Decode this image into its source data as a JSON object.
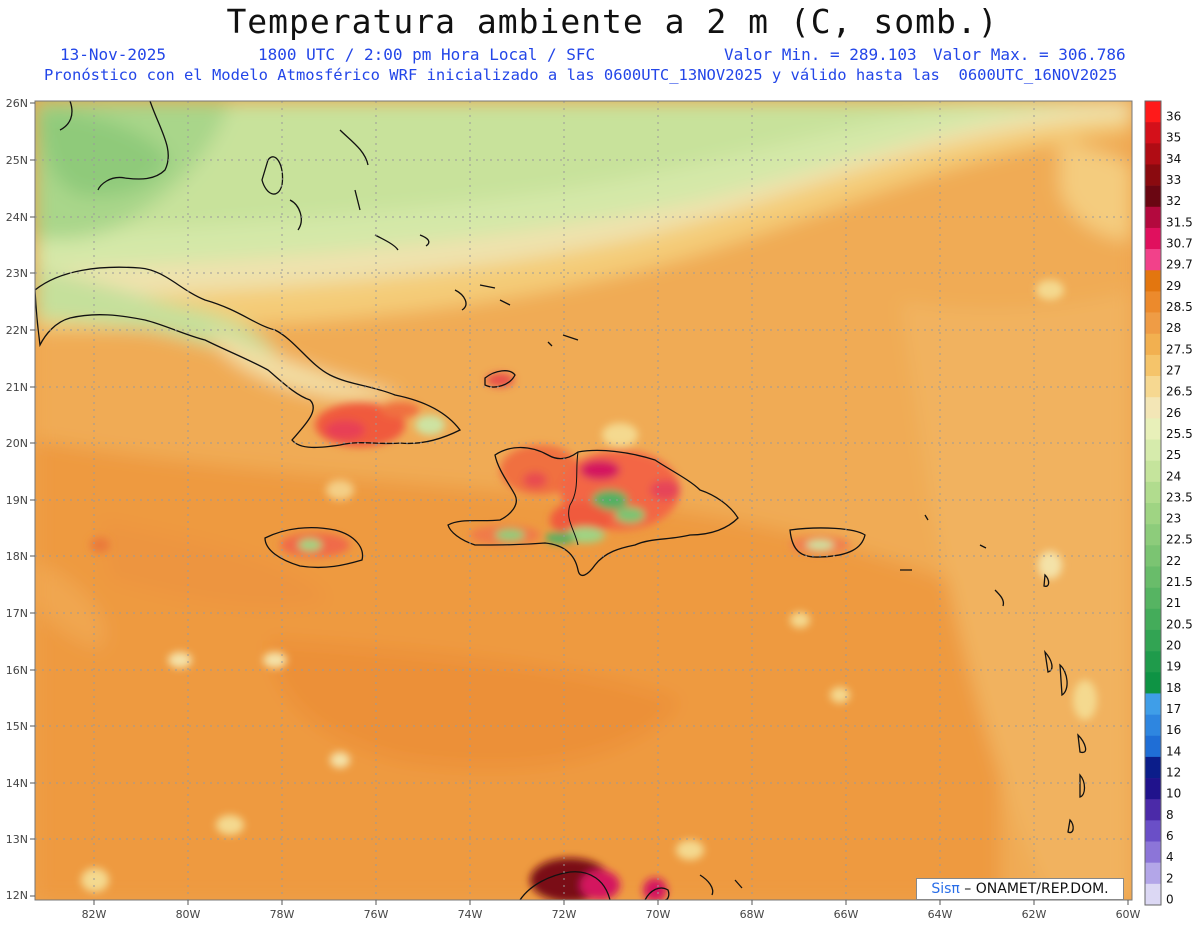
{
  "header": {
    "title": "Temperatura ambiente a 2 m (C, somb.)",
    "date": "13-Nov-2025",
    "time": "1800 UTC / 2:00 pm Hora Local / SFC",
    "vmin": "Valor Min. = 289.103",
    "vmax": "Valor Max. = 306.786",
    "model": "Pronóstico con el Modelo Atmosférico WRF inicializado a las 0600UTC_13NOV2025 y válido hasta las  0600UTC_16NOV2025"
  },
  "axes": {
    "lat_labels": [
      "26N",
      "25N",
      "24N",
      "23N",
      "22N",
      "21N",
      "20N",
      "19N",
      "18N",
      "17N",
      "16N",
      "15N",
      "14N",
      "13N",
      "12N"
    ],
    "lon_labels": [
      "82W",
      "80W",
      "78W",
      "76W",
      "74W",
      "72W",
      "70W",
      "68W",
      "66W",
      "64W",
      "62W",
      "60W"
    ]
  },
  "colorbar": {
    "levels": [
      "36",
      "35",
      "34",
      "33",
      "32",
      "31.5",
      "30.7",
      "29.7",
      "29",
      "28.5",
      "28",
      "27.5",
      "27",
      "26.5",
      "26",
      "25.5",
      "25",
      "24",
      "23.5",
      "23",
      "22.5",
      "22",
      "21.5",
      "21",
      "20.5",
      "20",
      "19",
      "18",
      "17",
      "16",
      "14",
      "12",
      "10",
      "8",
      "6",
      "4",
      "2",
      "0"
    ],
    "colors": [
      "#ff1a1a",
      "#d4101a",
      "#b00c14",
      "#8a0a0f",
      "#6a0612",
      "#b3093e",
      "#e0105e",
      "#f2418a",
      "#e3760f",
      "#ec8a2c",
      "#ef9c45",
      "#f2b050",
      "#f5c46a",
      "#f6d891",
      "#f3e6b6",
      "#e8f0b9",
      "#d6ebac",
      "#c5e49c",
      "#b1dc8e",
      "#9fd483",
      "#8dcc7b",
      "#7bc472",
      "#69bc6a",
      "#56b462",
      "#44ac5a",
      "#32a453",
      "#1f9b4b",
      "#0e9344",
      "#3f9ee8",
      "#2e86e0",
      "#1f6ed6",
      "#0b1d8a",
      "#20128c",
      "#4b2aa8",
      "#6a4fc7",
      "#8c75d8",
      "#b3a6e8",
      "#dcd8f4"
    ]
  },
  "credit": {
    "brand": "Sisπ",
    "text": " – ONAMET/REP.DOM."
  }
}
